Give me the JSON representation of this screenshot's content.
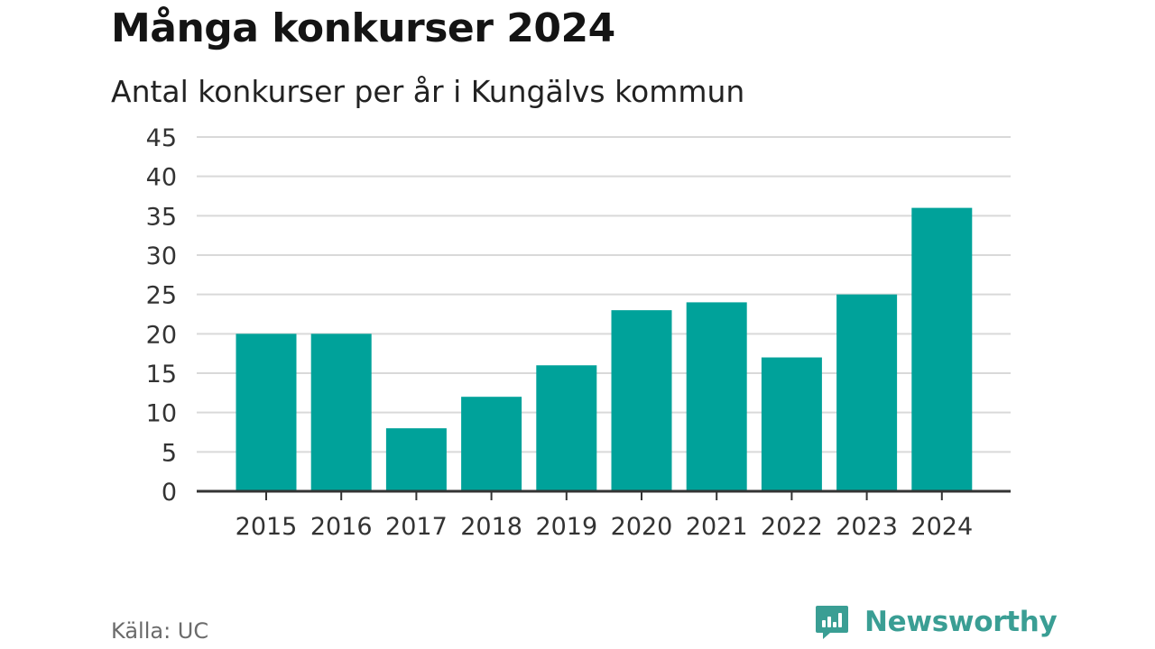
{
  "title": "Många konkurser 2024",
  "subtitle": "Antal konkurser per år i Kungälvs kommun",
  "source": "Källa: UC",
  "brand": {
    "name": "Newsworthy",
    "logo_icon": "newsworthy-logo-icon",
    "color": "#3a9e94"
  },
  "colors": {
    "bar": "#00a29a",
    "gridline": "#d9d9d9",
    "axis": "#333333",
    "tick_text": "#333333"
  },
  "chart_data": {
    "type": "bar",
    "categories": [
      "2015",
      "2016",
      "2017",
      "2018",
      "2019",
      "2020",
      "2021",
      "2022",
      "2023",
      "2024"
    ],
    "values": [
      20,
      20,
      8,
      12,
      16,
      23,
      24,
      17,
      25,
      36
    ],
    "title": "Många konkurser 2024",
    "subtitle": "Antal konkurser per år i Kungälvs kommun",
    "xlabel": "",
    "ylabel": "",
    "ylim": [
      0,
      45
    ],
    "yticks": [
      0,
      5,
      10,
      15,
      20,
      25,
      30,
      35,
      40,
      45
    ],
    "grid": true,
    "legend": "none"
  }
}
